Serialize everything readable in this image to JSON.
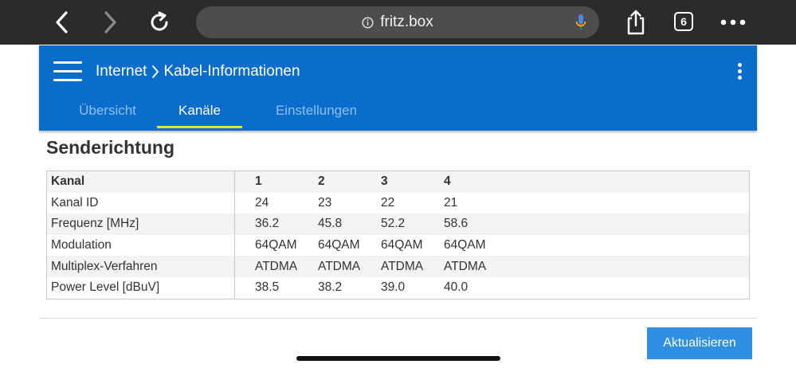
{
  "browser": {
    "url": "fritz.box",
    "tab_count": "6",
    "icons": [
      "back-icon",
      "forward-icon",
      "reload-icon",
      "info-icon",
      "microphone-icon",
      "share-icon",
      "tabs-icon",
      "more-icon"
    ]
  },
  "header": {
    "breadcrumb_parent": "Internet",
    "breadcrumb_current": "Kabel-Informationen",
    "tabs": [
      {
        "label": "Übersicht",
        "active": false
      },
      {
        "label": "Kanäle",
        "active": true
      },
      {
        "label": "Einstellungen",
        "active": false
      }
    ],
    "accent_color": "#0a6dcb",
    "active_tab_underline_color": "#e8e42a"
  },
  "main": {
    "section_title": "Senderichtung",
    "table": {
      "header": {
        "label": "Kanal",
        "values": [
          "1",
          "2",
          "3",
          "4"
        ]
      },
      "rows": [
        {
          "label": "Kanal ID",
          "values": [
            "24",
            "23",
            "22",
            "21"
          ]
        },
        {
          "label": "Frequenz [MHz]",
          "values": [
            "36.2",
            "45.8",
            "52.2",
            "58.6"
          ]
        },
        {
          "label": "Modulation",
          "values": [
            "64QAM",
            "64QAM",
            "64QAM",
            "64QAM"
          ]
        },
        {
          "label": "Multiplex-Verfahren",
          "values": [
            "ATDMA",
            "ATDMA",
            "ATDMA",
            "ATDMA"
          ]
        },
        {
          "label": "Power Level [dBuV]",
          "values": [
            "38.5",
            "38.2",
            "39.0",
            "40.0"
          ]
        }
      ]
    },
    "refresh_label": "Aktualisieren",
    "button_color": "#2f8fe0"
  }
}
